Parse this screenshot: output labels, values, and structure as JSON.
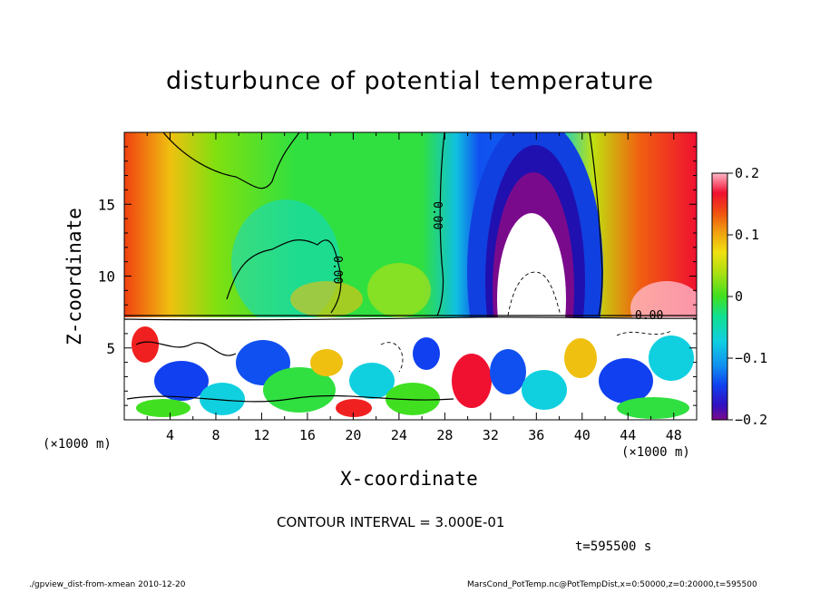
{
  "chart_data": {
    "type": "heatmap",
    "title": "disturbunce of potential temperature",
    "xlabel": "X-coordinate",
    "ylabel": "Z-coordinate",
    "x_unit": "(×1000 m)",
    "z_unit": "(×1000 m)",
    "x_ticks": [
      "4",
      "8",
      "12",
      "16",
      "20",
      "24",
      "28",
      "32",
      "36",
      "40",
      "44",
      "48"
    ],
    "z_ticks": [
      "5",
      "10",
      "15"
    ],
    "xlim": [
      0,
      50
    ],
    "zlim": [
      0,
      20
    ],
    "colorbar": {
      "min": -0.2,
      "max": 0.2,
      "tick_labels": [
        "0.2",
        "0.1",
        "0",
        "−0.1",
        "−0.2"
      ],
      "tick_values": [
        0.2,
        0.1,
        0,
        -0.1,
        -0.2
      ]
    },
    "contour_label": "0.00",
    "contour_interval_text": "CONTOUR INTERVAL = 3.000E-01",
    "time_text": "t=595500 s",
    "footer_left": "./gpview_dist-from-xmean  2010-12-20",
    "footer_right": "MarsCond_PotTemp.nc@PotTempDist,x=0:50000,z=0:20000,t=595500"
  }
}
